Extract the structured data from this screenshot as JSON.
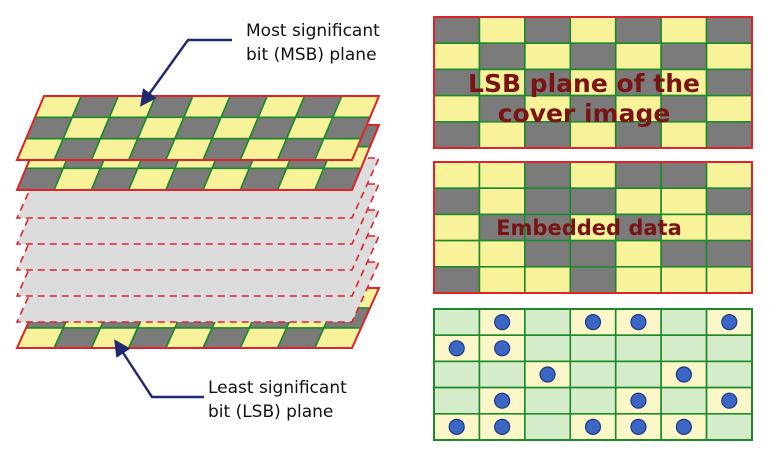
{
  "callouts": {
    "msb": [
      "Most significant",
      "bit (MSB) plane"
    ],
    "lsb": [
      "Least significant",
      "bit (LSB) plane"
    ]
  },
  "panels": {
    "cover_lsb": {
      "title_lines": [
        "LSB plane of the",
        "cover image"
      ],
      "grid": [
        [
          1,
          0,
          1,
          0,
          1,
          0,
          1
        ],
        [
          0,
          1,
          0,
          1,
          0,
          1,
          0
        ],
        [
          1,
          0,
          1,
          0,
          1,
          0,
          1
        ],
        [
          0,
          1,
          0,
          1,
          0,
          1,
          0
        ],
        [
          1,
          0,
          1,
          0,
          1,
          0,
          1
        ]
      ]
    },
    "embedded": {
      "title": "Embedded data",
      "grid": [
        [
          0,
          0,
          1,
          0,
          1,
          1,
          0
        ],
        [
          1,
          0,
          1,
          1,
          0,
          0,
          1
        ],
        [
          0,
          1,
          1,
          0,
          1,
          0,
          0
        ],
        [
          0,
          0,
          1,
          1,
          0,
          1,
          1
        ],
        [
          1,
          0,
          0,
          1,
          0,
          0,
          0
        ]
      ]
    },
    "changes": {
      "grid": [
        [
          0,
          1,
          0,
          1,
          1,
          0,
          1
        ],
        [
          1,
          1,
          0,
          0,
          0,
          0,
          0
        ],
        [
          0,
          0,
          1,
          0,
          0,
          1,
          0
        ],
        [
          0,
          1,
          0,
          0,
          1,
          0,
          1
        ],
        [
          1,
          1,
          0,
          1,
          1,
          1,
          0
        ]
      ]
    }
  },
  "colors": {
    "cell_dark": "#7b7b7b",
    "cell_light": "#f8f29a",
    "grid_line": "#1c8a2a",
    "outline": "#e0232a",
    "filler_plane": "#dcdcdc",
    "change_bg": "#d4ecc9",
    "change_cell": "#fbf7c8",
    "dot": "#3b66c4",
    "title_text": "#7a1414",
    "arrow": "#1f2a6e"
  }
}
